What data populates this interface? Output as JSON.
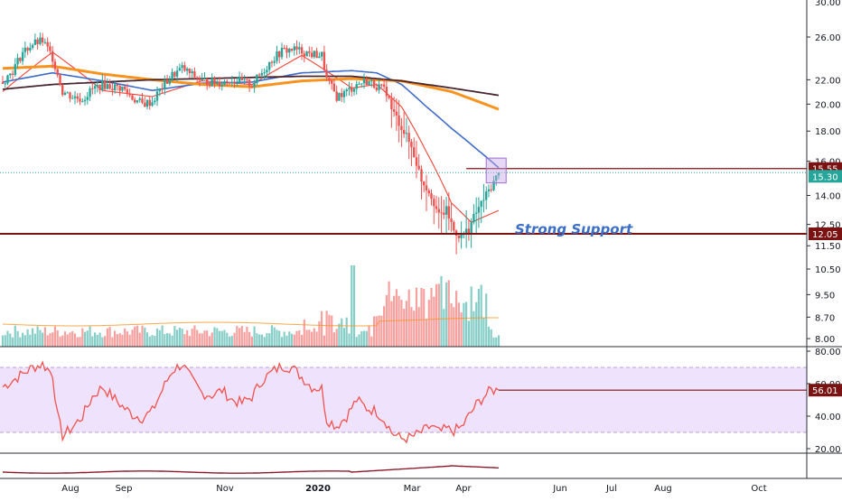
{
  "colors": {
    "up": "#26a69a",
    "down": "#ef5350",
    "ema_fast": "#f44336",
    "sma_mid": "#3f6cc9",
    "sma_slow_orange": "#f7931e",
    "sma_slow_dark": "#4a2730",
    "support_line": "#7b1212",
    "current_price_line": "#26a69a",
    "rsi_line": "#ef5350",
    "rsi_band": "#e8d5fb",
    "annotation": "#3b6fc6",
    "highlight_box": "#c7a8e8",
    "axis_text": "#131722",
    "grid": "#f0f3fa"
  },
  "chart_data": [
    {
      "type": "line",
      "pane": "price",
      "description_series": "daily candlestick prices with moving averages",
      "y_axis": {
        "scale": "log",
        "tick_labels": [
          "30.00",
          "26.00",
          "22.00",
          "20.00",
          "18.00",
          "16.00",
          "14.00",
          "12.50",
          "11.50",
          "10.50",
          "9.50",
          "8.70",
          "8.00"
        ],
        "ylim": [
          7.9,
          30.0
        ]
      },
      "x_axis": {
        "tick_labels": [
          "Aug",
          "Sep",
          "Nov",
          "2020",
          "Mar",
          "Apr",
          "Jun",
          "Jul",
          "Aug",
          "Oct"
        ]
      },
      "grid": false,
      "price_labels": [
        {
          "value": 15.55,
          "text": "15.55",
          "color": "#7b1212"
        },
        {
          "value": 15.3,
          "text": "15.30",
          "color": "#26a69a"
        },
        {
          "value": 12.05,
          "text": "12.05",
          "color": "#7b1212"
        }
      ],
      "annotation": {
        "text": "Strong Support",
        "at_price": 12.6
      },
      "horizontal_levels": [
        15.55,
        12.05
      ],
      "close_path": [
        [
          0,
          21.8
        ],
        [
          4,
          22.8
        ],
        [
          8,
          24.5
        ],
        [
          12,
          25.3
        ],
        [
          16,
          25.6
        ],
        [
          20,
          24.0
        ],
        [
          24,
          21.0
        ],
        [
          28,
          20.6
        ],
        [
          32,
          20.4
        ],
        [
          36,
          21.2
        ],
        [
          40,
          21.6
        ],
        [
          44,
          21.4
        ],
        [
          48,
          21.3
        ],
        [
          52,
          20.5
        ],
        [
          56,
          20.0
        ],
        [
          60,
          20.2
        ],
        [
          64,
          21.4
        ],
        [
          68,
          22.4
        ],
        [
          72,
          23.0
        ],
        [
          76,
          22.4
        ],
        [
          80,
          21.9
        ],
        [
          84,
          21.8
        ],
        [
          88,
          21.8
        ],
        [
          92,
          22.0
        ],
        [
          96,
          21.8
        ],
        [
          100,
          21.6
        ],
        [
          104,
          22.6
        ],
        [
          108,
          23.8
        ],
        [
          112,
          24.6
        ],
        [
          116,
          24.8
        ],
        [
          120,
          24.6
        ],
        [
          124,
          24.3
        ],
        [
          128,
          24.2
        ],
        [
          130,
          22.0
        ],
        [
          134,
          20.6
        ],
        [
          138,
          21.0
        ],
        [
          142,
          21.6
        ],
        [
          146,
          21.9
        ],
        [
          150,
          21.5
        ],
        [
          154,
          21.0
        ],
        [
          156,
          19.6
        ],
        [
          160,
          18.3
        ],
        [
          164,
          16.9
        ],
        [
          168,
          14.9
        ],
        [
          172,
          14.0
        ],
        [
          175,
          12.9
        ],
        [
          178,
          13.2
        ],
        [
          181,
          12.2
        ],
        [
          184,
          11.9
        ],
        [
          187,
          12.3
        ],
        [
          190,
          13.1
        ],
        [
          193,
          13.8
        ],
        [
          196,
          14.5
        ],
        [
          199,
          15.3
        ]
      ],
      "series": [
        {
          "name": "",
          "kind": "ma-fast",
          "values": [
            [
              0,
              21.0
            ],
            [
              20,
              24.5
            ],
            [
              40,
              21.1
            ],
            [
              60,
              20.6
            ],
            [
              80,
              21.9
            ],
            [
              100,
              21.6
            ],
            [
              120,
              24.2
            ],
            [
              140,
              21.3
            ],
            [
              150,
              21.6
            ],
            [
              160,
              19.8
            ],
            [
              170,
              16.6
            ],
            [
              180,
              13.6
            ],
            [
              188,
              12.6
            ],
            [
              199,
              13.2
            ]
          ]
        },
        {
          "name": "",
          "kind": "ma-mid",
          "values": [
            [
              0,
              21.8
            ],
            [
              20,
              22.6
            ],
            [
              40,
              21.9
            ],
            [
              60,
              21.1
            ],
            [
              80,
              21.7
            ],
            [
              100,
              21.8
            ],
            [
              120,
              22.6
            ],
            [
              140,
              22.8
            ],
            [
              150,
              22.6
            ],
            [
              160,
              21.6
            ],
            [
              170,
              19.8
            ],
            [
              180,
              18.2
            ],
            [
              190,
              16.8
            ],
            [
              199,
              15.6
            ]
          ]
        },
        {
          "name": "",
          "kind": "ma-slow-orange",
          "values": [
            [
              0,
              23.0
            ],
            [
              20,
              23.2
            ],
            [
              40,
              22.5
            ],
            [
              60,
              22.0
            ],
            [
              80,
              21.6
            ],
            [
              100,
              21.4
            ],
            [
              120,
              21.9
            ],
            [
              140,
              22.1
            ],
            [
              160,
              21.9
            ],
            [
              180,
              21.0
            ],
            [
              199,
              19.6
            ]
          ]
        },
        {
          "name": "",
          "kind": "ma-slow-dark",
          "values": [
            [
              0,
              21.2
            ],
            [
              20,
              21.6
            ],
            [
              40,
              21.8
            ],
            [
              60,
              22.0
            ],
            [
              80,
              22.1
            ],
            [
              100,
              22.2
            ],
            [
              120,
              22.3
            ],
            [
              140,
              22.3
            ],
            [
              160,
              21.9
            ],
            [
              180,
              21.3
            ],
            [
              199,
              20.7
            ]
          ]
        }
      ]
    },
    {
      "type": "bar",
      "pane": "volume",
      "note": "relative volume bars, peak in March–April"
    },
    {
      "type": "line",
      "pane": "rsi",
      "y_axis": {
        "tick_labels": [
          "80.00",
          "60.00",
          "40.00",
          "20.00"
        ],
        "ylim": [
          15,
          82
        ]
      },
      "band": [
        30,
        70
      ],
      "current_value_label": "56.01",
      "values": [
        [
          0,
          58
        ],
        [
          4,
          62
        ],
        [
          8,
          66
        ],
        [
          12,
          70
        ],
        [
          16,
          72
        ],
        [
          20,
          66
        ],
        [
          22,
          40
        ],
        [
          24,
          28
        ],
        [
          28,
          33
        ],
        [
          32,
          40
        ],
        [
          36,
          52
        ],
        [
          40,
          58
        ],
        [
          44,
          52
        ],
        [
          48,
          46
        ],
        [
          52,
          41
        ],
        [
          56,
          39
        ],
        [
          60,
          43
        ],
        [
          64,
          56
        ],
        [
          68,
          68
        ],
        [
          72,
          72
        ],
        [
          76,
          62
        ],
        [
          80,
          54
        ],
        [
          84,
          53
        ],
        [
          88,
          56
        ],
        [
          92,
          50
        ],
        [
          96,
          48
        ],
        [
          100,
          52
        ],
        [
          104,
          62
        ],
        [
          108,
          67
        ],
        [
          112,
          71
        ],
        [
          116,
          70
        ],
        [
          120,
          64
        ],
        [
          124,
          58
        ],
        [
          128,
          57
        ],
        [
          130,
          38
        ],
        [
          134,
          34
        ],
        [
          138,
          40
        ],
        [
          142,
          50
        ],
        [
          146,
          45
        ],
        [
          150,
          43
        ],
        [
          154,
          36
        ],
        [
          156,
          30
        ],
        [
          160,
          26
        ],
        [
          164,
          27
        ],
        [
          168,
          30
        ],
        [
          172,
          34
        ],
        [
          175,
          30
        ],
        [
          178,
          32
        ],
        [
          181,
          31
        ],
        [
          184,
          33
        ],
        [
          187,
          40
        ],
        [
          190,
          47
        ],
        [
          193,
          52
        ],
        [
          196,
          56
        ],
        [
          199,
          56.01
        ]
      ]
    }
  ]
}
